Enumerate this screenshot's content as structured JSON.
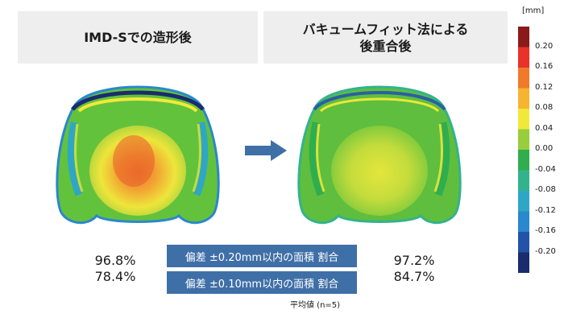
{
  "titles": {
    "left": "IMD-Sでの造形後",
    "right_line1": "バキュームフィット法による",
    "right_line2": "後重合後"
  },
  "bands": {
    "row1": "偏差 ±0.20mm以内の面積 割合",
    "row2": "偏差 ±0.10mm以内の面積 割合"
  },
  "results": {
    "left": {
      "row1": "96.8%",
      "row2": "78.4%"
    },
    "right": {
      "row1": "97.2%",
      "row2": "84.7%"
    }
  },
  "note": "平均値 (n=5)",
  "scale": {
    "unit": "[mm]",
    "ticks": [
      "0.20",
      "0.16",
      "0.12",
      "0.08",
      "0.04",
      "0.00",
      "-0.04",
      "-0.08",
      "-0.12",
      "-0.16",
      "-0.20"
    ],
    "colors": [
      "#8b1a1a",
      "#e8322a",
      "#f07a2a",
      "#f5b530",
      "#f1e93a",
      "#98cd3c",
      "#2fae4f",
      "#33b38c",
      "#2fa7c4",
      "#2a88cc",
      "#2353a6",
      "#1a2c6e"
    ]
  },
  "icons": {
    "arrow": "right-arrow-icon"
  }
}
